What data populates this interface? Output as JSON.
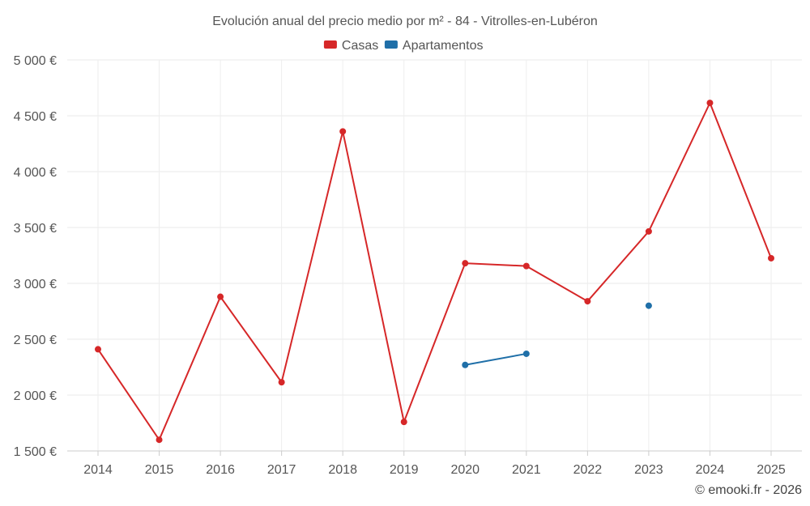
{
  "chart_data": {
    "type": "line",
    "title": "Evolución anual del precio medio por m² - 84 - Vitrolles-en-Lubéron",
    "xlabel": "",
    "ylabel": "",
    "x": [
      "2014",
      "2015",
      "2016",
      "2017",
      "2018",
      "2019",
      "2020",
      "2021",
      "2022",
      "2023",
      "2024",
      "2025"
    ],
    "series": [
      {
        "name": "Casas",
        "color": "#d62728",
        "values": [
          2410,
          1600,
          2880,
          2115,
          4360,
          1760,
          3180,
          3155,
          2840,
          3465,
          4615,
          3225
        ]
      },
      {
        "name": "Apartamentos",
        "color": "#1f6fa8",
        "values": [
          null,
          null,
          null,
          null,
          null,
          null,
          2270,
          2370,
          null,
          2800,
          null,
          null
        ]
      }
    ],
    "ylim": [
      1500,
      5000
    ],
    "yticks": [
      1500,
      2000,
      2500,
      3000,
      3500,
      4000,
      4500,
      5000
    ],
    "ytick_labels": [
      "1 500 €",
      "2 000 €",
      "2 500 €",
      "3 000 €",
      "3 500 €",
      "4 000 €",
      "4 500 €",
      "5 000 €"
    ],
    "grid": true,
    "legend_position": "top-center"
  },
  "footer": {
    "credit": "© emooki.fr - 2026"
  }
}
